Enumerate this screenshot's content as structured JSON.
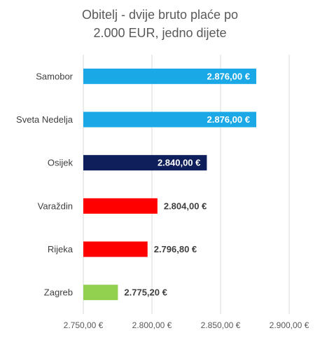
{
  "chart_data": {
    "type": "bar",
    "orientation": "horizontal",
    "title_line1": "Obitelj - dvije bruto plaće po",
    "title_line2": "2.000 EUR, jedno dijete",
    "categories": [
      "Samobor",
      "Sveta Nedelja",
      "Osijek",
      "Varaždin",
      "Rijeka",
      "Zagreb"
    ],
    "values": [
      2876.0,
      2876.0,
      2840.0,
      2804.0,
      2796.8,
      2775.2
    ],
    "value_labels": [
      "2.876,00 €",
      "2.876,00 €",
      "2.840,00 €",
      "2.804,00 €",
      "2.796,80 €",
      "2.775,20 €"
    ],
    "bar_colors": [
      "#1aa9e6",
      "#1aa9e6",
      "#0e1f5b",
      "#ff0000",
      "#ff0000",
      "#92d050"
    ],
    "label_inside": [
      true,
      true,
      true,
      false,
      false,
      false
    ],
    "xlim": [
      2750,
      2900
    ],
    "x_ticks": [
      2750,
      2800,
      2850,
      2900
    ],
    "x_tick_labels": [
      "2.750,00 €",
      "2.800,00 €",
      "2.850,00 €",
      "2.900,00 €"
    ],
    "grid": "vertical",
    "legend": "none"
  }
}
